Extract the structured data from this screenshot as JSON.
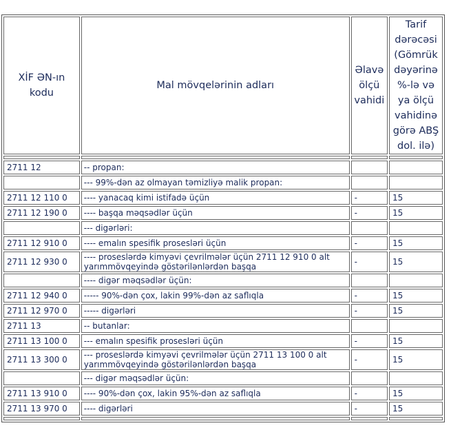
{
  "header": {
    "code": "XİF ƏN-ın kodu",
    "name": "Mal mövqelərinin adları",
    "unit": "Əlavə ölçü vahidi",
    "rate": "Tarif dərəcəsi (Gömrük dəyərinə %-lə və ya ölçü vahidinə görə ABŞ dol. ilə)"
  },
  "rows": [
    {
      "code": "2711 12",
      "name": "-- propan:",
      "unit": "",
      "rate": ""
    },
    {
      "code": "",
      "name": "--- 99%-dən az olmayan təmizliyə malik propan:",
      "unit": "",
      "rate": ""
    },
    {
      "code": "2711 12 110 0",
      "name": "---- yanacaq kimi istifadə üçün",
      "unit": "-",
      "rate": "15"
    },
    {
      "code": "2711 12 190 0",
      "name": "---- başqa məqsədlər üçün",
      "unit": "-",
      "rate": "15"
    },
    {
      "code": "",
      "name": "--- digərləri:",
      "unit": "",
      "rate": ""
    },
    {
      "code": "2711 12 910 0",
      "name": "---- emalın spesifik prosesləri üçün",
      "unit": "-",
      "rate": "15"
    },
    {
      "code": "2711 12 930 0",
      "name": "---- proseslərdə kimyəvi çevrilmələr üçün 2711 12 910 0 alt yarımmövqeyində göstərilənlərdən başqa",
      "unit": "-",
      "rate": "15"
    },
    {
      "code": "",
      "name": "---- digər məqsədlər üçün:",
      "unit": "",
      "rate": ""
    },
    {
      "code": "2711 12 940 0",
      "name": "----- 90%-dən çox, lakin 99%-dən az saflıqla",
      "unit": "-",
      "rate": "15"
    },
    {
      "code": "2711 12 970 0",
      "name": "----- digərləri",
      "unit": "-",
      "rate": "15"
    },
    {
      "code": "2711 13",
      "name": "-- butanlar:",
      "unit": "",
      "rate": ""
    },
    {
      "code": "2711 13 100 0",
      "name": "--- emalın spesifik prosesləri üçün",
      "unit": "-",
      "rate": "15"
    },
    {
      "code": "2711 13 300 0",
      "name": "--- proseslərdə kimyəvi çevrilmələr üçün 2711 13 100 0 alt yarımmövqeyində göstərilənlərdən başqa",
      "unit": "-",
      "rate": "15"
    },
    {
      "code": "",
      "name": "--- digər məqsədlər üçün:",
      "unit": "",
      "rate": ""
    },
    {
      "code": "2711 13 910 0",
      "name": "---- 90%-dən çox, lakin 95%-dən az saflıqla",
      "unit": "-",
      "rate": "15"
    },
    {
      "code": "2711 13 970 0",
      "name": "---- digərləri",
      "unit": "-",
      "rate": "15"
    }
  ]
}
